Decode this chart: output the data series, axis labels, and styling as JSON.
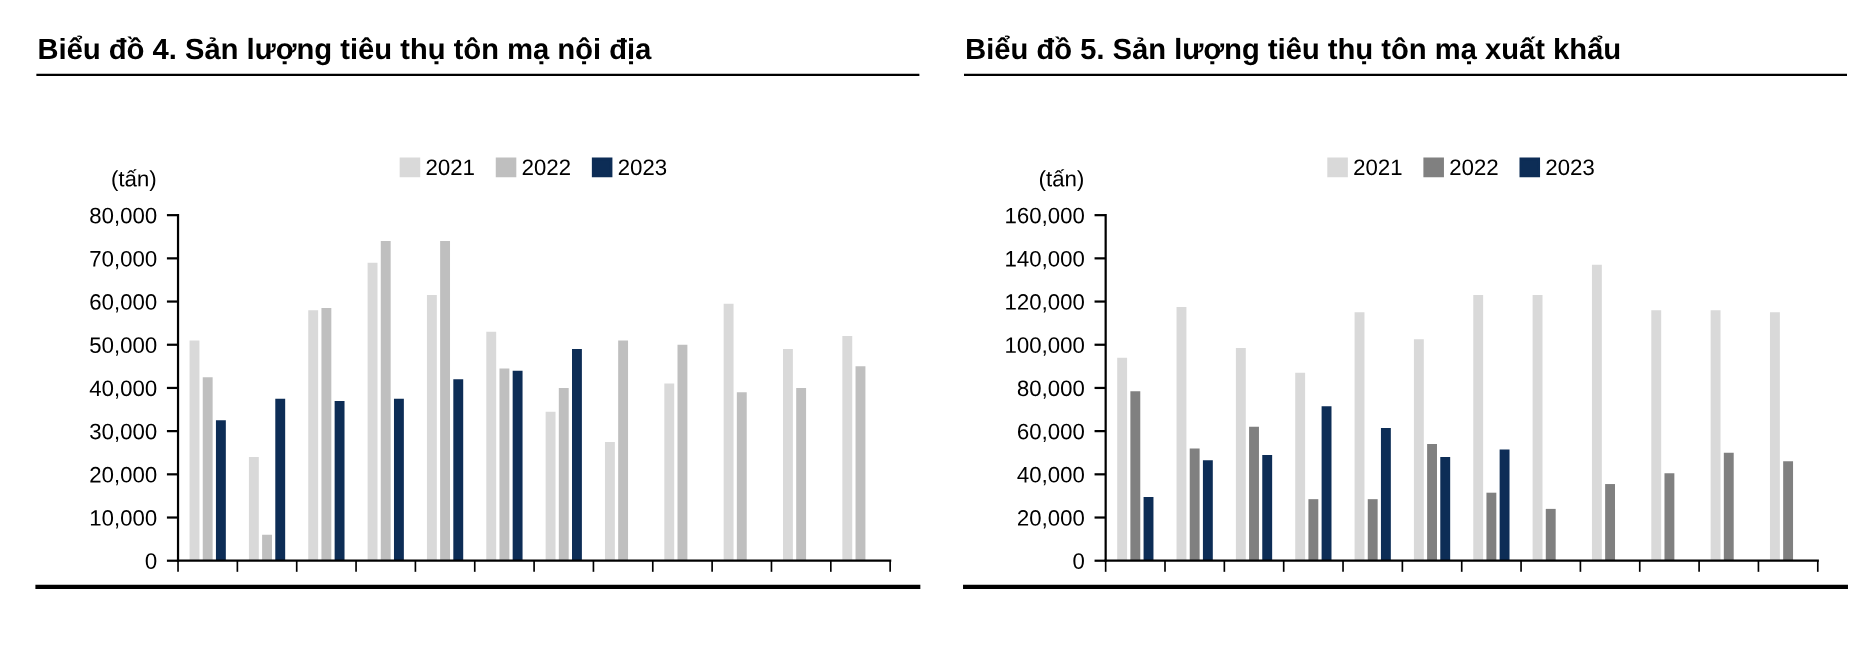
{
  "chart_data": [
    {
      "type": "bar",
      "title": "Biểu đồ 4. Sản lượng tiêu thụ tôn mạ nội địa",
      "ylabel": "(tấn)",
      "categories": [
        null,
        null,
        null,
        null,
        null,
        null,
        null,
        null,
        null,
        null,
        null,
        null
      ],
      "series": [
        {
          "name": "2021",
          "color": "#d9d9d9",
          "values": [
            51000,
            24000,
            58000,
            69000,
            61500,
            53000,
            34500,
            27500,
            41000,
            59500,
            49000,
            52000
          ]
        },
        {
          "name": "2022",
          "color": "#bfbfbf",
          "values": [
            42500,
            6000,
            58500,
            74000,
            74000,
            44500,
            40000,
            51000,
            50000,
            39000,
            40000,
            45000
          ]
        },
        {
          "name": "2023",
          "color": "#0d2d56",
          "values": [
            32500,
            37500,
            37000,
            37500,
            42000,
            44000,
            49000,
            null,
            null,
            null,
            null,
            null
          ]
        }
      ],
      "ylim": [
        0,
        80000
      ],
      "yticks": [
        {
          "value": 0,
          "label": "0"
        },
        {
          "value": 10000,
          "label": "10,000"
        },
        {
          "value": 20000,
          "label": "20,000"
        },
        {
          "value": 30000,
          "label": "30,000"
        },
        {
          "value": 40000,
          "label": "40,000"
        },
        {
          "value": 50000,
          "label": "50,000"
        },
        {
          "value": 60000,
          "label": "60,000"
        },
        {
          "value": 70000,
          "label": "70,000"
        },
        {
          "value": 80000,
          "label": "80,000"
        }
      ],
      "grid": false,
      "legend": "top"
    },
    {
      "type": "bar",
      "title": "Biểu đồ 5. Sản lượng tiêu thụ tôn mạ xuất khẩu",
      "ylabel": "(tấn)",
      "categories": [
        null,
        null,
        null,
        null,
        null,
        null,
        null,
        null,
        null,
        null,
        null,
        null
      ],
      "series": [
        {
          "name": "2021",
          "color": "#d9d9d9",
          "values": [
            94000,
            117500,
            98500,
            87000,
            115000,
            102500,
            123000,
            123000,
            137000,
            116000,
            116000,
            115000
          ]
        },
        {
          "name": "2022",
          "color": "#808080",
          "values": [
            78500,
            52000,
            62000,
            28500,
            28500,
            54000,
            31500,
            24000,
            35500,
            40500,
            50000,
            46000
          ]
        },
        {
          "name": "2023",
          "color": "#0d2d56",
          "values": [
            29500,
            46500,
            49000,
            71500,
            61500,
            48000,
            51500,
            null,
            null,
            null,
            null,
            null
          ]
        }
      ],
      "ylim": [
        0,
        160000
      ],
      "yticks": [
        {
          "value": 0,
          "label": "0"
        },
        {
          "value": 20000,
          "label": "20,000"
        },
        {
          "value": 40000,
          "label": "40,000"
        },
        {
          "value": 60000,
          "label": "60,000"
        },
        {
          "value": 80000,
          "label": "80,000"
        },
        {
          "value": 100000,
          "label": "100,000"
        },
        {
          "value": 120000,
          "label": "120,000"
        },
        {
          "value": 140000,
          "label": "140,000"
        },
        {
          "value": 160000,
          "label": "160,000"
        }
      ],
      "grid": false,
      "legend": "top"
    }
  ]
}
